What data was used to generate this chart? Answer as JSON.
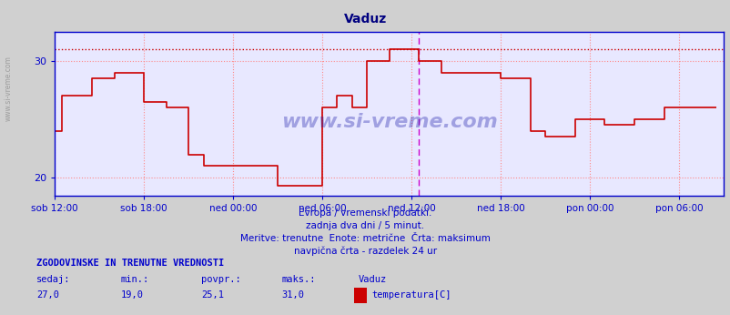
{
  "title": "Vaduz",
  "title_color": "#000080",
  "bg_color": "#d0d0d0",
  "plot_bg_color": "#e8e8ff",
  "line_color": "#cc0000",
  "max_line_color": "#cc0000",
  "grid_color": "#ff8888",
  "vline_color": "#cc00cc",
  "axis_color": "#0000cc",
  "watermark": "www.si-vreme.com",
  "subtitle1": "Evropa / vremenski podatki.",
  "subtitle2": "zadnja dva dni / 5 minut.",
  "subtitle3": "Meritve: trenutne  Enote: metrične  Črta: maksimum",
  "subtitle4": "navpična črta - razdelek 24 ur",
  "stats_header": "ZGODOVINSKE IN TRENUTNE VREDNOSTI",
  "stats_sedaj": "sedaj:",
  "stats_min": "min.:",
  "stats_povpr": "povpr.:",
  "stats_maks": "maks.:",
  "stats_sedaj_val": "27,0",
  "stats_min_val": "19,0",
  "stats_povpr_val": "25,1",
  "stats_maks_val": "31,0",
  "station": "Vaduz",
  "legend_label": "temperatura[C]",
  "legend_color": "#cc0000",
  "ylim_min": 18.5,
  "ylim_max": 32.5,
  "max_value": 31.0,
  "yticks": [
    20,
    30
  ],
  "xtick_labels": [
    "sob 12:00",
    "sob 18:00",
    "ned 00:00",
    "ned 06:00",
    "ned 12:00",
    "ned 18:00",
    "pon 00:00",
    "pon 06:00"
  ],
  "xtick_positions": [
    0,
    6,
    12,
    18,
    24,
    30,
    36,
    42
  ],
  "vline_position": 24.5,
  "total_hours": 45,
  "step_data": [
    [
      0,
      24
    ],
    [
      0.5,
      24
    ],
    [
      0.5,
      27
    ],
    [
      2.5,
      27
    ],
    [
      2.5,
      28.5
    ],
    [
      4,
      28.5
    ],
    [
      4,
      29
    ],
    [
      6,
      29
    ],
    [
      6,
      26.5
    ],
    [
      7.5,
      26.5
    ],
    [
      7.5,
      26
    ],
    [
      9,
      26
    ],
    [
      9,
      22
    ],
    [
      10,
      22
    ],
    [
      10,
      21
    ],
    [
      15,
      21
    ],
    [
      15,
      19.3
    ],
    [
      18,
      19.3
    ],
    [
      18,
      26
    ],
    [
      19,
      26
    ],
    [
      19,
      27
    ],
    [
      20,
      27
    ],
    [
      20,
      26
    ],
    [
      21,
      26
    ],
    [
      21,
      30
    ],
    [
      22.5,
      30
    ],
    [
      22.5,
      31
    ],
    [
      24.5,
      31
    ],
    [
      24.5,
      30
    ],
    [
      26,
      30
    ],
    [
      26,
      29
    ],
    [
      28,
      29
    ],
    [
      30,
      29
    ],
    [
      30,
      28.5
    ],
    [
      32,
      28.5
    ],
    [
      32,
      24
    ],
    [
      33,
      24
    ],
    [
      33,
      23.5
    ],
    [
      35,
      23.5
    ],
    [
      35,
      25
    ],
    [
      37,
      25
    ],
    [
      37,
      24.5
    ],
    [
      39,
      24.5
    ],
    [
      39,
      25
    ],
    [
      41,
      25
    ],
    [
      41,
      26
    ],
    [
      44.5,
      26
    ],
    [
      44.5,
      26
    ]
  ]
}
